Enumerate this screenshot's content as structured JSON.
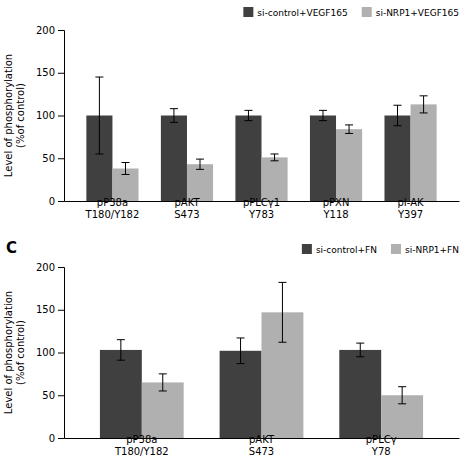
{
  "chart_data": [
    {
      "type": "bar",
      "categories": [
        "pP38a\nT180/Y182",
        "pAKT\nS473",
        "pPLCγ1\nY783",
        "pPXN\nY118",
        "pI-AK\nY397"
      ],
      "series": [
        {
          "name": "si-control+VEGF165",
          "color": "#404040",
          "values": [
            100,
            100,
            100,
            100,
            100
          ],
          "errors": [
            45,
            8,
            6,
            6,
            12
          ]
        },
        {
          "name": "si-NRP1+VEGF165",
          "color": "#b0b0b0",
          "values": [
            38,
            43,
            51,
            84,
            113
          ],
          "errors": [
            7,
            6,
            4,
            5,
            10
          ]
        }
      ],
      "ylabel": "Level of phosphorylation\n(%of control)",
      "ylim": [
        0,
        200
      ],
      "yticks": [
        0,
        50,
        100,
        150,
        200
      ],
      "legend": "upper right"
    },
    {
      "type": "bar",
      "title": "C",
      "categories": [
        "pP38a\nT180/Y182",
        "pAKT\nS473",
        "pPLCγ\nY78"
      ],
      "series": [
        {
          "name": "si-control+FN",
          "color": "#404040",
          "values": [
            103,
            102,
            103
          ],
          "errors": [
            12,
            15,
            8
          ]
        },
        {
          "name": "si-NRP1+FN",
          "color": "#b0b0b0",
          "values": [
            65,
            147,
            50
          ],
          "errors": [
            10,
            35,
            10
          ]
        }
      ],
      "ylabel": "Level of phosphorylation\n(%of control)",
      "ylim": [
        0,
        200
      ],
      "yticks": [
        0,
        50,
        100,
        150,
        200
      ],
      "legend": "upper right"
    }
  ]
}
